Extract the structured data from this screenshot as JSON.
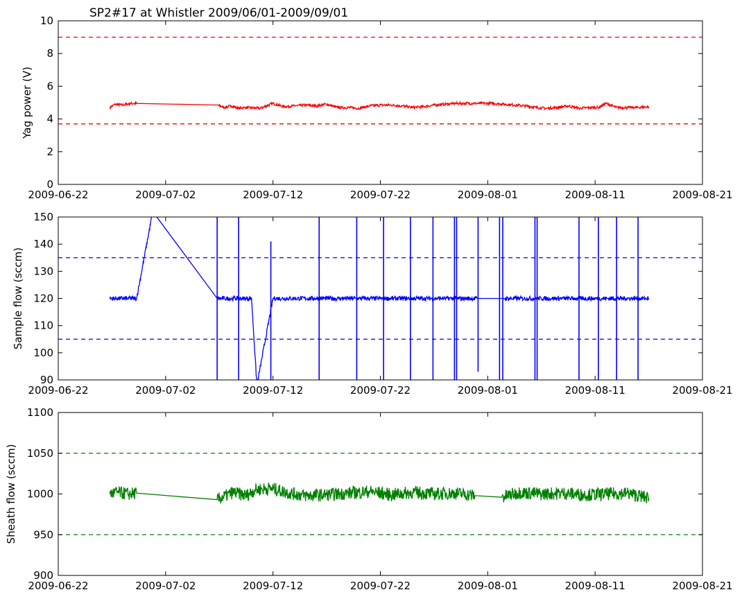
{
  "title": "SP2#17 at Whistler 2009/06/01-2009/09/01",
  "x_ticks": [
    "2009-06-22",
    "2009-07-02",
    "2009-07-12",
    "2009-07-22",
    "2009-08-01",
    "2009-08-11",
    "2009-08-21"
  ],
  "colors": {
    "yag": "#ff0000",
    "sample": "#0000ff",
    "sheath": "#008000",
    "axis": "#000000"
  },
  "chart_data": [
    {
      "type": "line",
      "title": "SP2#17 at Whistler 2009/06/01-2009/09/01",
      "xlabel": "",
      "ylabel": "Yag power (V)",
      "xlim": [
        "2009-06-22",
        "2009-08-21"
      ],
      "ylim": [
        0,
        10
      ],
      "y_ticks": [
        "0",
        "2",
        "4",
        "6",
        "8",
        "10"
      ],
      "thresholds": [
        9.0,
        3.7
      ],
      "grid": false,
      "series": [
        {
          "x": [
            "2009-06-26.8",
            "2009-06-27.3",
            "2009-06-28",
            "2009-06-28.7",
            "2009-06-29.3",
            "2009-07-06.8",
            "2009-07-07.5",
            "2009-07-08.1",
            "2009-07-08.8",
            "2009-07-09.4",
            "2009-07-10.8",
            "2009-07-12",
            "2009-07-13",
            "2009-07-14",
            "2009-07-15",
            "2009-07-16",
            "2009-07-17",
            "2009-07-18",
            "2009-07-19",
            "2009-07-20",
            "2009-07-21",
            "2009-07-22",
            "2009-07-23",
            "2009-07-24",
            "2009-07-25",
            "2009-07-26",
            "2009-07-27",
            "2009-07-28",
            "2009-07-29",
            "2009-07-30",
            "2009-07-31",
            "2009-08-01.6",
            "2009-08-02.5",
            "2009-08-03.5",
            "2009-08-04.5",
            "2009-08-05.5",
            "2009-08-06.5",
            "2009-08-07.5",
            "2009-08-08.5",
            "2009-08-09.5",
            "2009-08-10.5",
            "2009-08-11.3",
            "2009-08-12",
            "2009-08-13",
            "2009-08-14",
            "2009-08-15",
            "2009-08-16"
          ],
          "y": [
            4.7,
            4.9,
            4.85,
            4.95,
            4.95,
            4.85,
            4.7,
            4.8,
            4.65,
            4.7,
            4.65,
            4.95,
            4.75,
            4.8,
            4.85,
            4.8,
            4.9,
            4.7,
            4.7,
            4.65,
            4.8,
            4.85,
            4.85,
            4.8,
            4.7,
            4.75,
            4.85,
            4.9,
            4.95,
            4.95,
            4.95,
            4.95,
            4.9,
            4.85,
            4.8,
            4.7,
            4.65,
            4.7,
            4.8,
            4.65,
            4.7,
            4.7,
            4.95,
            4.7,
            4.7,
            4.7,
            4.75
          ],
          "noise": 0.08
        }
      ]
    },
    {
      "type": "line",
      "xlabel": "",
      "ylabel": "Sample flow (sccm)",
      "xlim": [
        "2009-06-22",
        "2009-08-21"
      ],
      "ylim": [
        90,
        150
      ],
      "y_ticks": [
        "90",
        "100",
        "110",
        "120",
        "130",
        "140",
        "150"
      ],
      "thresholds": [
        135,
        105
      ],
      "grid": false,
      "series": [
        {
          "x": [
            "2009-06-26.8",
            "2009-06-27.5",
            "2009-06-28.5",
            "2009-06-29.3",
            "2009-06-30.8",
            "2009-07-06.8",
            "2009-07-07.5",
            "2009-07-08.3",
            "2009-07-08.8",
            "2009-07-09.5",
            "2009-07-10",
            "2009-07-10.5",
            "2009-07-12",
            "2009-07-14",
            "2009-07-16",
            "2009-07-18",
            "2009-07-20",
            "2009-07-22",
            "2009-07-24",
            "2009-07-26",
            "2009-07-28",
            "2009-07-30",
            "2009-07-31",
            "2009-08-02.5",
            "2009-08-04",
            "2009-08-05.5",
            "2009-08-07",
            "2009-08-09",
            "2009-08-11",
            "2009-08-13",
            "2009-08-15",
            "2009-08-16"
          ],
          "y": [
            120,
            120,
            120,
            120,
            152,
            120,
            120,
            120,
            120,
            120,
            120,
            88,
            120,
            120,
            120,
            120,
            120,
            120,
            120,
            120,
            120,
            120,
            120,
            120,
            120,
            120,
            120,
            120,
            120,
            120,
            120,
            120
          ],
          "noise": 0.8,
          "spikes": [
            [
              "2009-07-06.8",
              150,
              90
            ],
            [
              "2009-07-08.8",
              150,
              90
            ],
            [
              "2009-07-11.8",
              141,
              90
            ],
            [
              "2009-07-16.3",
              150,
              90
            ],
            [
              "2009-07-19.8",
              150,
              90
            ],
            [
              "2009-07-22.3",
              150,
              90
            ],
            [
              "2009-07-24.8",
              150,
              90
            ],
            [
              "2009-07-26.9",
              150,
              90
            ],
            [
              "2009-07-28.9",
              150,
              90
            ],
            [
              "2009-07-29.1",
              150,
              90
            ],
            [
              "2009-07-31.1",
              150,
              93
            ],
            [
              "2009-08-02.1",
              150,
              90
            ],
            [
              "2009-08-02.4",
              150,
              90
            ],
            [
              "2009-08-05.4",
              150,
              90
            ],
            [
              "2009-08-05.6",
              150,
              90
            ],
            [
              "2009-08-09.5",
              150,
              90
            ],
            [
              "2009-08-11.3",
              150,
              90
            ],
            [
              "2009-08-13",
              150,
              90
            ],
            [
              "2009-08-15",
              150,
              90
            ]
          ]
        }
      ]
    },
    {
      "type": "line",
      "xlabel": "",
      "ylabel": "Sheath flow (sccm)",
      "xlim": [
        "2009-06-22",
        "2009-08-21"
      ],
      "ylim": [
        900,
        1100
      ],
      "y_ticks": [
        "900",
        "950",
        "1000",
        "1050",
        "1100"
      ],
      "thresholds": [
        1050,
        950
      ],
      "grid": false,
      "series": [
        {
          "x": [
            "2009-06-26.8",
            "2009-06-27.5",
            "2009-06-28.5",
            "2009-06-29.3",
            "2009-07-06.8",
            "2009-07-08.3",
            "2009-07-09.5",
            "2009-07-10.3",
            "2009-07-11.8",
            "2009-07-13.5",
            "2009-07-15",
            "2009-07-17",
            "2009-07-19",
            "2009-07-21",
            "2009-07-23",
            "2009-07-25",
            "2009-07-27",
            "2009-07-29",
            "2009-07-30.8",
            "2009-08-02.3",
            "2009-08-04",
            "2009-08-06",
            "2009-08-08",
            "2009-08-10",
            "2009-08-12",
            "2009-08-14",
            "2009-08-16"
          ],
          "y": [
            1000,
            1002,
            1000,
            1001,
            993,
            1002,
            998,
            1005,
            1007,
            1001,
            998,
            999,
            1001,
            1003,
            999,
            1002,
            1000,
            1001,
            998,
            996,
            1002,
            1000,
            1001,
            999,
            1000,
            1001,
            995
          ],
          "noise": 8
        }
      ]
    }
  ]
}
